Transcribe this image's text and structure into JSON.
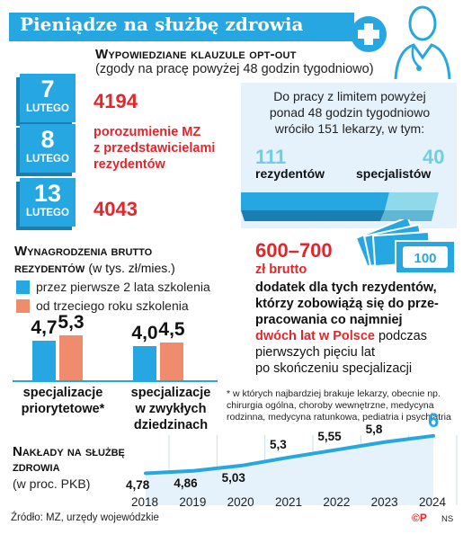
{
  "header": {
    "title": "Pieniądze na służbę zdrowia"
  },
  "opt_out": {
    "heading": "Wypowiedziane klauzule opt-out",
    "subheading": "(zgody na pracę powyżej 48 godzin tygodniowo)",
    "dates": [
      {
        "day": "7",
        "month": "LUTEGO",
        "value": "4194",
        "note": ""
      },
      {
        "day": "8",
        "month": "LUTEGO",
        "value": "",
        "note_lines": [
          "porozumienie MZ",
          "z przedstawicielami",
          "rezydentów"
        ]
      },
      {
        "day": "13",
        "month": "LUTEGO",
        "value": "4043",
        "note": ""
      }
    ],
    "limit_text_lines": [
      "Do pracy z limitem powyżej",
      "ponad 48 godzin tygodniowo",
      "wróciło 151 lekarzy, w tym:"
    ],
    "residents_value": "111",
    "residents_label": "rezydentów",
    "specialists_value": "40",
    "specialists_label": "specjalistów"
  },
  "salaries": {
    "heading_line1": "Wynagrodzenia brutto",
    "heading_line2": "rezydentów",
    "unit": "(w tys. zł/mies.)",
    "legend": [
      {
        "label": "przez pierwsze 2 lata szkolenia",
        "color": "#27a7e1"
      },
      {
        "label": "od trzeciego roku szkolenia",
        "color": "#f08c6e"
      }
    ]
  },
  "bonus": {
    "amount": "600–700",
    "amount_unit": "zł brutto",
    "text_bold_lines": [
      "dodatek dla tych rezydentów,",
      "którzy zobowiążą się do prze-",
      "pracowania co najmniej"
    ],
    "text_red": "dwóch lat w Polsce",
    "text_rest_1": " podczas",
    "text_rest_lines": [
      "pierwszych pięciu lat",
      "po skończeniu specjalizacji"
    ],
    "banknote_label": "100",
    "footnote": "* w których najbardziej brakuje lekarzy, obecnie np. chirurgia ogólna, choroby wewnętrzne, medycyna rodzinna, medycyna ratunkowa, pediatria i psychiatria"
  },
  "spending": {
    "heading_line1": "Nakłady na służbę",
    "heading_line2": "zdrowia",
    "unit": "(w proc. PKB)"
  },
  "footer": {
    "source": "Źródło: MZ, urzędy wojewódzkie",
    "copyright": "©P",
    "agency": "NS"
  },
  "chart_data": [
    {
      "type": "bar",
      "categories": [
        "specjalizacje priorytetowe*",
        "specjalizacje w zwykłych dziedzinach"
      ],
      "category_lines": [
        [
          "specjalizacje",
          "priorytetowe*"
        ],
        [
          "specjalizacje",
          "w zwykłych",
          "dziedzinach"
        ]
      ],
      "series": [
        {
          "name": "przez pierwsze 2 lata szkolenia",
          "values": [
            4.7,
            4.0
          ],
          "labels": [
            "4,7",
            "4,0"
          ],
          "color": "#27a7e1"
        },
        {
          "name": "od trzeciego roku szkolenia",
          "values": [
            5.3,
            4.5
          ],
          "labels": [
            "5,3",
            "4,5"
          ],
          "color": "#f08c6e"
        }
      ],
      "ylim": [
        0,
        5.3
      ]
    },
    {
      "type": "line",
      "x": [
        "2018",
        "2019",
        "2020",
        "2021",
        "2022",
        "2023",
        "2024"
      ],
      "values": [
        4.78,
        4.86,
        5.03,
        5.3,
        5.55,
        5.8,
        6
      ],
      "labels": [
        "4,78",
        "4,86",
        "5,03",
        "5,3",
        "5,55",
        "5,8",
        "6"
      ],
      "ylim": [
        4.5,
        6.2
      ]
    }
  ]
}
